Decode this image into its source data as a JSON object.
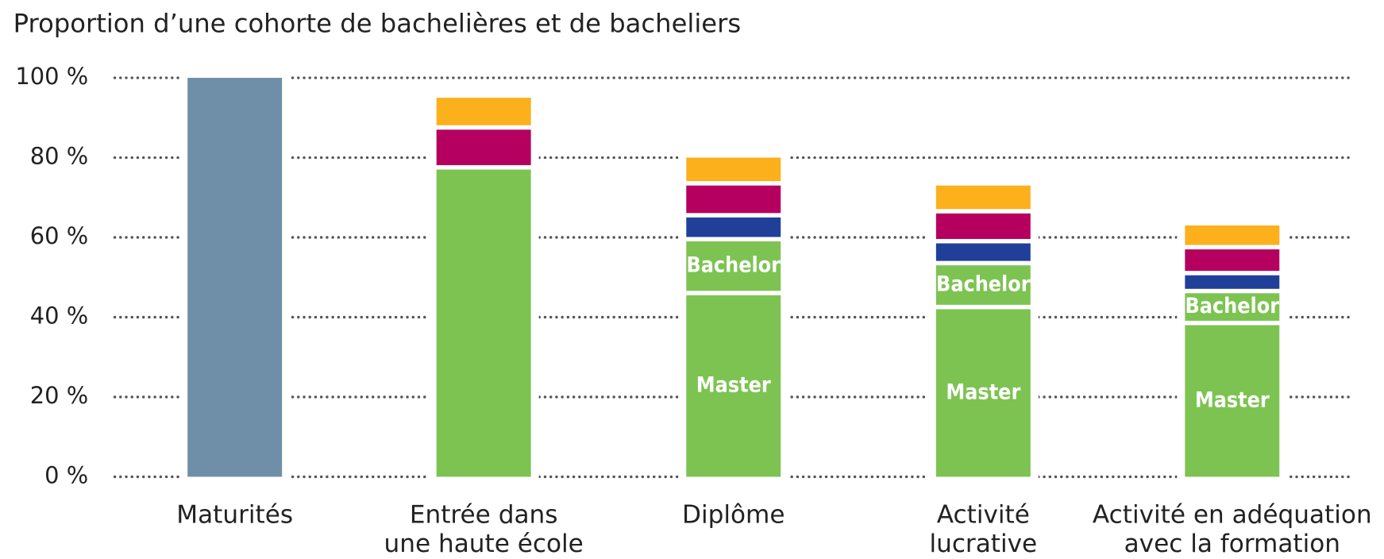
{
  "chart_data": {
    "type": "stacked_bar",
    "title": "Proportion d’une cohorte de bachelières et de bacheliers",
    "categories": [
      [
        "Maturités"
      ],
      [
        "Entrée dans",
        "une haute école"
      ],
      [
        "Diplôme"
      ],
      [
        "Activité",
        "lucrative"
      ],
      [
        "Activité en adéquation",
        "avec la formation"
      ]
    ],
    "series": [
      {
        "color": "#6f8fa8",
        "values": [
          100,
          null,
          null,
          null,
          null
        ]
      },
      {
        "color": "#7dc352",
        "values": [
          null,
          77,
          null,
          null,
          null
        ]
      },
      {
        "name": "Master",
        "color": "#7dc352",
        "values": [
          null,
          null,
          45.5,
          42,
          38
        ]
      },
      {
        "name": "Bachelor",
        "color": "#7dc352",
        "values": [
          null,
          null,
          13.5,
          11,
          8
        ]
      },
      {
        "color": "#1f3f99",
        "values": [
          null,
          null,
          6,
          5.5,
          4.5
        ]
      },
      {
        "color": "#b5005f",
        "values": [
          null,
          10,
          8,
          7.5,
          6.5
        ]
      },
      {
        "color": "#fbb01c",
        "values": [
          null,
          8,
          7,
          7,
          6
        ]
      }
    ],
    "ylim": [
      0,
      100
    ],
    "yticks": [
      {
        "value": 0,
        "label": "0 %"
      },
      {
        "value": 20,
        "label": "20 %"
      },
      {
        "value": 40,
        "label": "40 %"
      },
      {
        "value": 60,
        "label": "60 %"
      },
      {
        "value": 80,
        "label": "80 %"
      },
      {
        "value": 100,
        "label": "100 %"
      }
    ],
    "grid": true
  }
}
